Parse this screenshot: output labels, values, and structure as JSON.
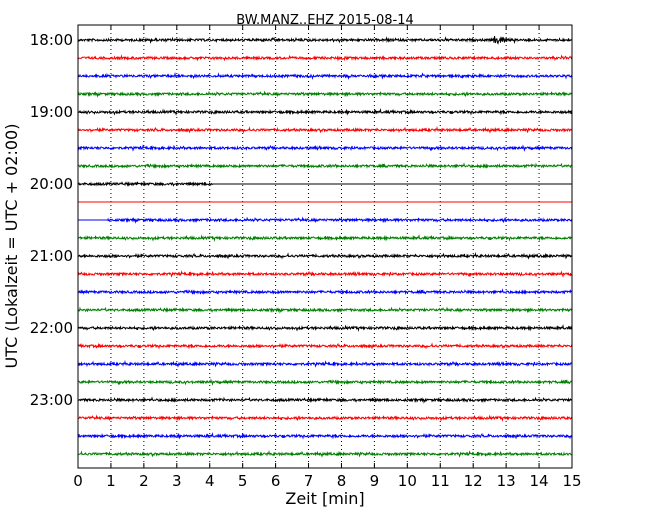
{
  "chart_data": {
    "type": "line",
    "title": "BW.MANZ..EHZ 2015-08-14",
    "xlabel": "Zeit  [min]",
    "ylabel": "UTC (Lokalzeit = UTC + 02:00)",
    "xlim": [
      0,
      15
    ],
    "x_ticks": [
      "0",
      "1",
      "2",
      "3",
      "4",
      "5",
      "6",
      "7",
      "8",
      "9",
      "10",
      "11",
      "12",
      "13",
      "14",
      "15"
    ],
    "y_tick_labels": [
      "18:00",
      "19:00",
      "20:00",
      "21:00",
      "22:00",
      "23:00"
    ],
    "grid": "vertical dotted",
    "colors": [
      "#000000",
      "#ff0000",
      "#0000ff",
      "#008000"
    ],
    "traces": [
      {
        "start": "18:00",
        "x_from": 0,
        "x_to": 15,
        "color": "#000000",
        "event_at": 12.8
      },
      {
        "start": "18:15",
        "x_from": 0,
        "x_to": 15,
        "color": "#ff0000"
      },
      {
        "start": "18:30",
        "x_from": 0,
        "x_to": 15,
        "color": "#0000ff"
      },
      {
        "start": "18:45",
        "x_from": 0,
        "x_to": 15,
        "color": "#008000"
      },
      {
        "start": "19:00",
        "x_from": 0,
        "x_to": 15,
        "color": "#000000"
      },
      {
        "start": "19:15",
        "x_from": 0,
        "x_to": 15,
        "color": "#ff0000"
      },
      {
        "start": "19:30",
        "x_from": 0,
        "x_to": 15,
        "color": "#0000ff"
      },
      {
        "start": "19:45",
        "x_from": 0,
        "x_to": 15,
        "color": "#008000"
      },
      {
        "start": "20:00",
        "x_from": 0,
        "x_to": 4.1,
        "color": "#000000",
        "flat_after": 4.1
      },
      {
        "start": "20:15",
        "x_from": 0,
        "x_to": 15,
        "color": "#ff0000",
        "flat": true
      },
      {
        "start": "20:30",
        "x_from": 0.9,
        "x_to": 15,
        "color": "#0000ff",
        "flat_before": 0.9
      },
      {
        "start": "20:45",
        "x_from": 0,
        "x_to": 15,
        "color": "#008000"
      },
      {
        "start": "21:00",
        "x_from": 0,
        "x_to": 15,
        "color": "#000000"
      },
      {
        "start": "21:15",
        "x_from": 0,
        "x_to": 15,
        "color": "#ff0000"
      },
      {
        "start": "21:30",
        "x_from": 0,
        "x_to": 15,
        "color": "#0000ff"
      },
      {
        "start": "21:45",
        "x_from": 0,
        "x_to": 15,
        "color": "#008000"
      },
      {
        "start": "22:00",
        "x_from": 0,
        "x_to": 15,
        "color": "#000000"
      },
      {
        "start": "22:15",
        "x_from": 0,
        "x_to": 15,
        "color": "#ff0000"
      },
      {
        "start": "22:30",
        "x_from": 0,
        "x_to": 15,
        "color": "#0000ff"
      },
      {
        "start": "22:45",
        "x_from": 0,
        "x_to": 15,
        "color": "#008000"
      },
      {
        "start": "23:00",
        "x_from": 0,
        "x_to": 15,
        "color": "#000000"
      },
      {
        "start": "23:15",
        "x_from": 0,
        "x_to": 15,
        "color": "#ff0000"
      },
      {
        "start": "23:30",
        "x_from": 0,
        "x_to": 15,
        "color": "#0000ff"
      },
      {
        "start": "23:45",
        "x_from": 0,
        "x_to": 15,
        "color": "#008000"
      }
    ]
  }
}
